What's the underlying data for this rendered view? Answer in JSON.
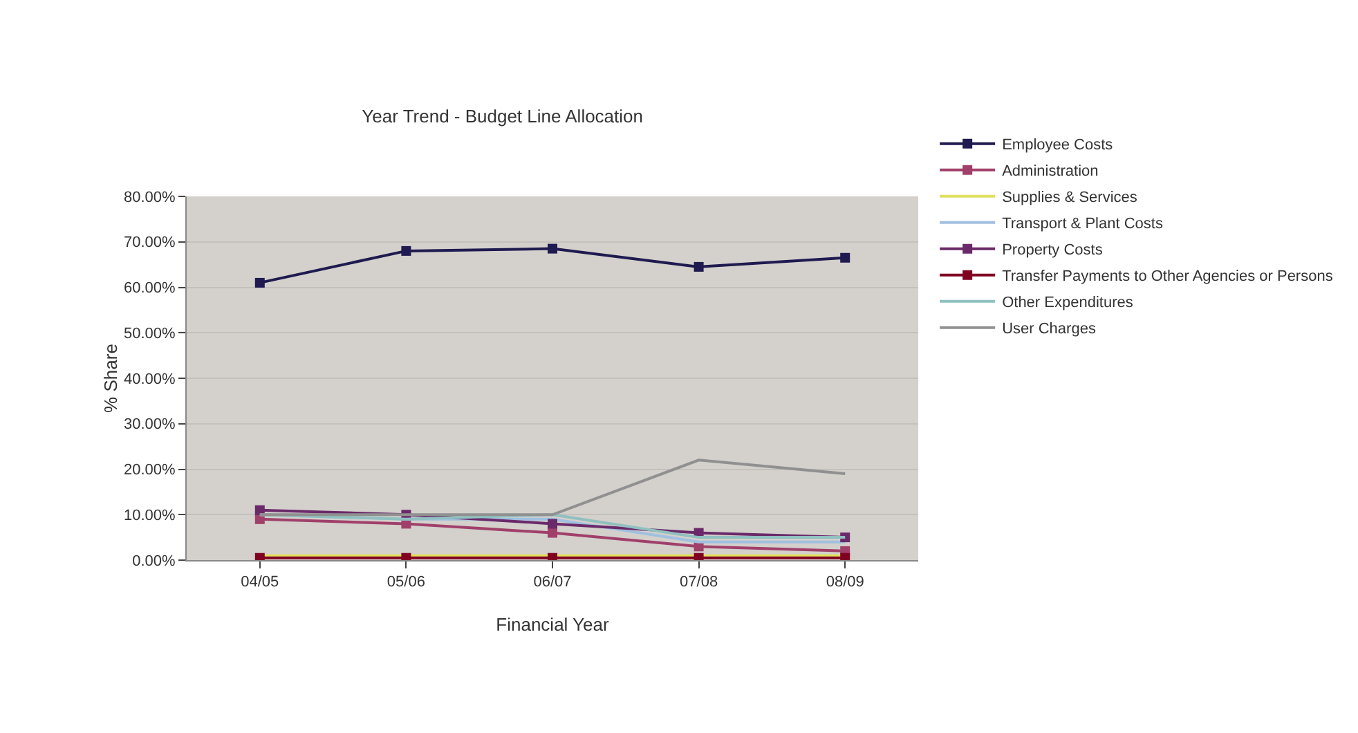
{
  "chart_data": {
    "type": "line",
    "title": "Year Trend - Budget Line Allocation",
    "xlabel": "Financial Year",
    "ylabel": "% Share",
    "categories": [
      "04/05",
      "05/06",
      "06/07",
      "07/08",
      "08/09"
    ],
    "series": [
      {
        "name": "Employee Costs",
        "color": "#1f1a4f",
        "marker": "square",
        "values": [
          61,
          68,
          68.5,
          64.5,
          66.5
        ]
      },
      {
        "name": "Administration",
        "color": "#a0406a",
        "marker": "square",
        "values": [
          9,
          8,
          6,
          3,
          2
        ]
      },
      {
        "name": "Supplies & Services",
        "color": "#e0e060",
        "marker": "none",
        "values": [
          1,
          1,
          1,
          1,
          1
        ]
      },
      {
        "name": "Transport & Plant Costs",
        "color": "#a0c0e0",
        "marker": "none",
        "values": [
          10,
          9,
          9,
          4,
          4
        ]
      },
      {
        "name": "Property Costs",
        "color": "#6a2a6a",
        "marker": "square",
        "values": [
          11,
          10,
          8,
          6,
          5
        ]
      },
      {
        "name": "Transfer Payments to Other Agencies or Persons",
        "color": "#800020",
        "marker": "square",
        "values": [
          0.5,
          0.5,
          0.5,
          0.5,
          0.5
        ]
      },
      {
        "name": "Other Expenditures",
        "color": "#90c0c0",
        "marker": "none",
        "values": [
          10,
          9,
          10,
          5,
          5
        ]
      },
      {
        "name": "User Charges",
        "color": "#909090",
        "marker": "none",
        "values": [
          10,
          10,
          10,
          22,
          19
        ]
      }
    ],
    "ylim": [
      0,
      80
    ],
    "yticks": [
      {
        "value": 0,
        "label": "0.00%"
      },
      {
        "value": 10,
        "label": "10.00%"
      },
      {
        "value": 20,
        "label": "20.00%"
      },
      {
        "value": 30,
        "label": "30.00%"
      },
      {
        "value": 40,
        "label": "40.00%"
      },
      {
        "value": 50,
        "label": "50.00%"
      },
      {
        "value": 60,
        "label": "60.00%"
      },
      {
        "value": 70,
        "label": "70.00%"
      },
      {
        "value": 80,
        "label": "80.00%"
      }
    ],
    "grid": "y",
    "legend": "right",
    "line_style": "solid"
  }
}
